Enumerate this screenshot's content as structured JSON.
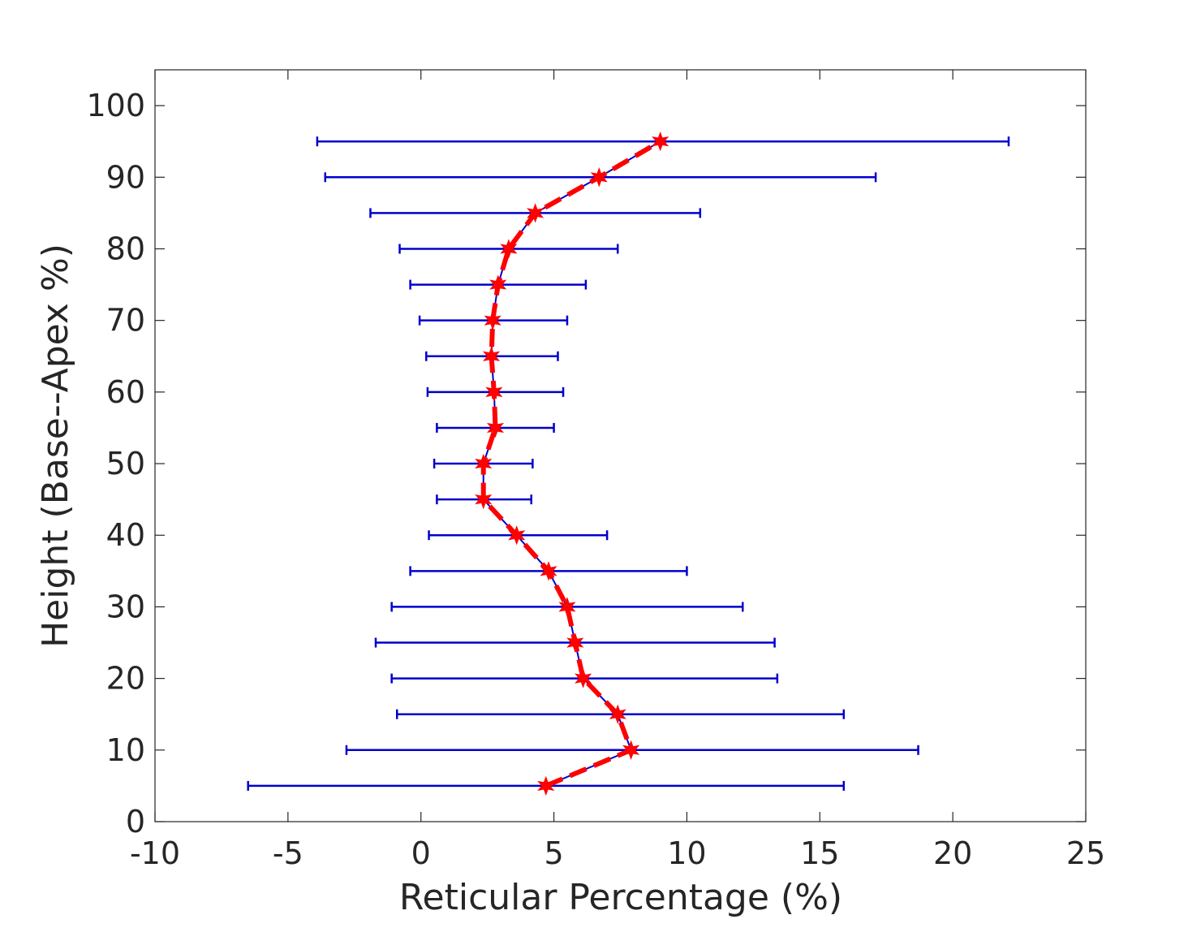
{
  "chart_data": {
    "type": "line",
    "title": "",
    "xlabel": "Reticular Percentage (%)",
    "ylabel": "Height (Base--Apex %)",
    "xlim": [
      -10,
      25
    ],
    "ylim": [
      0,
      105
    ],
    "xticks": [
      -10,
      -5,
      0,
      5,
      10,
      15,
      20,
      25
    ],
    "yticks": [
      0,
      10,
      20,
      30,
      40,
      50,
      60,
      70,
      80,
      90,
      100
    ],
    "xtick_labels": [
      "-10",
      "-5",
      "0",
      "5",
      "10",
      "15",
      "20",
      "25"
    ],
    "ytick_labels": [
      "0",
      "10",
      "20",
      "30",
      "40",
      "50",
      "60",
      "70",
      "80",
      "90",
      "100"
    ],
    "grid": false,
    "colors": {
      "errorbar": "#0000cc",
      "mean_line": "#ff0000",
      "marker": "#ff0000",
      "axes": "#262626"
    },
    "series": [
      {
        "marker": "star",
        "error_direction": "horizontal",
        "points": [
          {
            "y": 5,
            "x": 4.7,
            "xlow": -6.5,
            "xhigh": 15.9
          },
          {
            "y": 10,
            "x": 7.9,
            "xlow": -2.8,
            "xhigh": 18.7
          },
          {
            "y": 15,
            "x": 7.4,
            "xlow": -0.9,
            "xhigh": 15.9
          },
          {
            "y": 20,
            "x": 6.1,
            "xlow": -1.1,
            "xhigh": 13.4
          },
          {
            "y": 25,
            "x": 5.8,
            "xlow": -1.7,
            "xhigh": 13.3
          },
          {
            "y": 30,
            "x": 5.5,
            "xlow": -1.1,
            "xhigh": 12.1
          },
          {
            "y": 35,
            "x": 4.8,
            "xlow": -0.4,
            "xhigh": 10.0
          },
          {
            "y": 40,
            "x": 3.6,
            "xlow": 0.3,
            "xhigh": 7.0
          },
          {
            "y": 45,
            "x": 2.35,
            "xlow": 0.6,
            "xhigh": 4.15
          },
          {
            "y": 50,
            "x": 2.35,
            "xlow": 0.5,
            "xhigh": 4.2
          },
          {
            "y": 55,
            "x": 2.8,
            "xlow": 0.6,
            "xhigh": 5.0
          },
          {
            "y": 60,
            "x": 2.75,
            "xlow": 0.25,
            "xhigh": 5.35
          },
          {
            "y": 65,
            "x": 2.65,
            "xlow": 0.2,
            "xhigh": 5.15
          },
          {
            "y": 70,
            "x": 2.7,
            "xlow": -0.05,
            "xhigh": 5.5
          },
          {
            "y": 75,
            "x": 2.9,
            "xlow": -0.4,
            "xhigh": 6.2
          },
          {
            "y": 80,
            "x": 3.3,
            "xlow": -0.8,
            "xhigh": 7.4
          },
          {
            "y": 85,
            "x": 4.3,
            "xlow": -1.9,
            "xhigh": 10.5
          },
          {
            "y": 90,
            "x": 6.7,
            "xlow": -3.6,
            "xhigh": 17.1
          },
          {
            "y": 95,
            "x": 9.0,
            "xlow": -3.9,
            "xhigh": 22.1
          }
        ]
      }
    ]
  }
}
